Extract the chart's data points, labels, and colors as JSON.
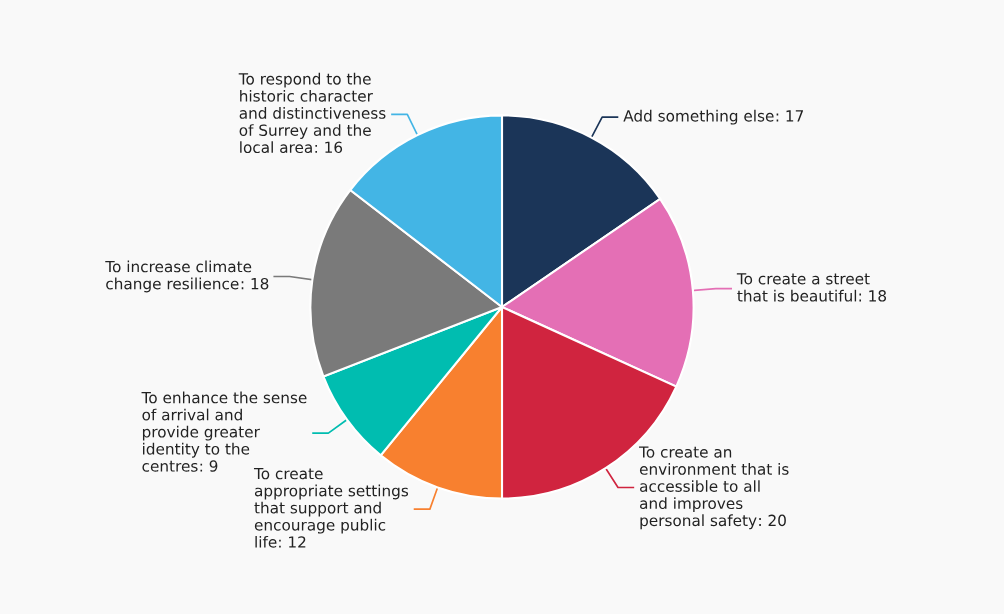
{
  "chart_data": {
    "type": "pie",
    "categories": [
      "Add something else",
      "To create a street that is beautiful",
      "To create an environment that is accessible to all and improves personal safety",
      "To create appropriate settings that support and encourage public life",
      "To enhance the sense of arrival and provide greater identity to the centres",
      "To increase climate change resilience",
      "To respond to the historic character and distinctiveness of Surrey and the local area"
    ],
    "values": [
      17,
      18,
      20,
      12,
      9,
      18,
      16
    ],
    "value_labels": [
      ": 17",
      ": 18",
      ": 20",
      ": 12",
      ": 9",
      ": 18",
      ": 16"
    ],
    "colors": [
      "#1b3558",
      "#e46fb5",
      "#d0243f",
      "#f8802f",
      "#00bdb0",
      "#7a7a7a",
      "#43b5e5"
    ]
  }
}
